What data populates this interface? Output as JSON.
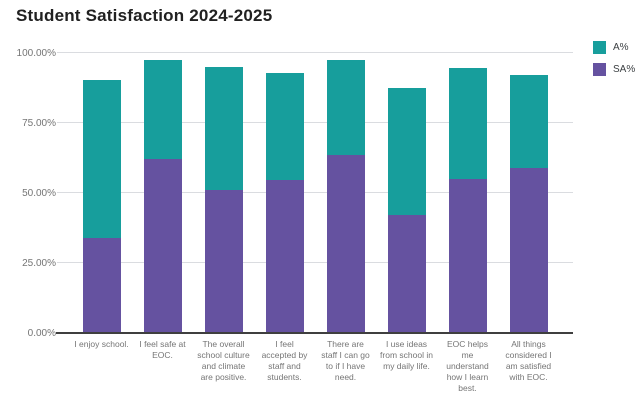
{
  "title": "Student Satisfaction 2024-2025",
  "colors": {
    "agree_teal": "#179E9C",
    "strongly_agree_purple": "#6552A0",
    "gridline": "#dadce0",
    "axis_line": "#3f3f3f",
    "axis_label": "#757575",
    "title_text": "#212121",
    "legend_text": "#3c4043",
    "background": "#ffffff"
  },
  "legend": [
    {
      "label": "A%",
      "color": "#179E9C"
    },
    {
      "label": "SA%",
      "color": "#6552A0"
    }
  ],
  "chart_data": {
    "type": "bar",
    "stacked": true,
    "title": "Student Satisfaction 2024-2025",
    "xlabel": "",
    "ylabel": "",
    "ylim": [
      0,
      100
    ],
    "grid": true,
    "legend_position": "top-right",
    "yticks": [
      {
        "label": "0.00%",
        "value": 0
      },
      {
        "label": "25.00%",
        "value": 25
      },
      {
        "label": "50.00%",
        "value": 50
      },
      {
        "label": "75.00%",
        "value": 75
      },
      {
        "label": "100.00%",
        "value": 100
      }
    ],
    "categories": [
      "I enjoy school.",
      "I feel safe at EOC.",
      "The overall school culture and climate are positive.",
      "I feel accepted by staff and students.",
      "There are staff I can go to if I have need.",
      "I use ideas from school in my daily life.",
      "EOC helps me understand how I learn best.",
      "All things considered I am satisfied with EOC."
    ],
    "series": [
      {
        "name": "SA%",
        "color": "#6552A0",
        "values": [
          34,
          62,
          51,
          54.5,
          63.5,
          42,
          55,
          59
        ]
      },
      {
        "name": "A%",
        "color": "#179E9C",
        "values": [
          56.5,
          35.5,
          44,
          38.5,
          34,
          45.5,
          39.5,
          33
        ]
      }
    ],
    "totals": [
      90.5,
      97.5,
      95,
      93,
      97.5,
      87.5,
      94.5,
      92
    ]
  }
}
